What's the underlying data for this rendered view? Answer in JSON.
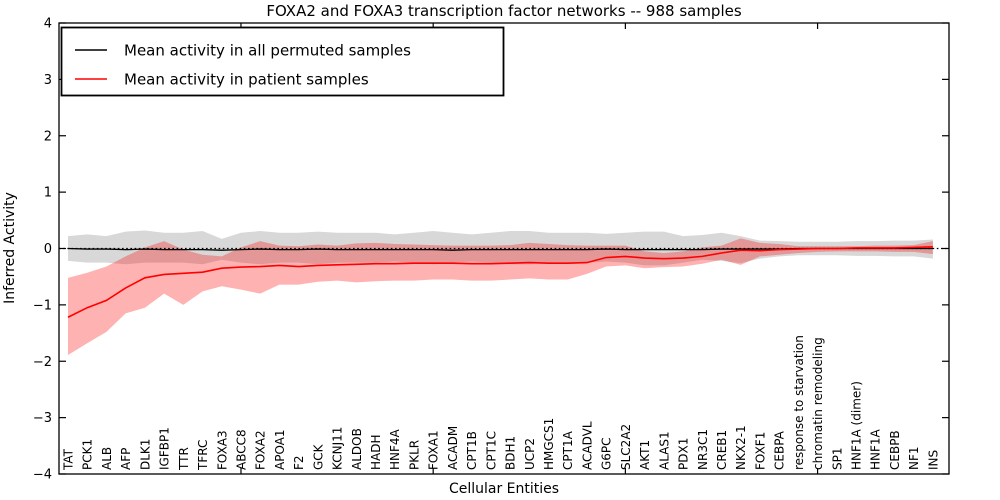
{
  "title": "FOXA2 and FOXA3 transcription factor networks -- 988 samples",
  "axes": {
    "xlabel": "Cellular Entities",
    "ylabel": "Inferred Activity"
  },
  "legend": {
    "position": "upper left",
    "items": [
      {
        "label": "Mean activity in all permuted samples",
        "color": "#000000"
      },
      {
        "label": "Mean activity in patient samples",
        "color": "#ff0000"
      }
    ]
  },
  "colors": {
    "patient_line": "#ff0000",
    "permuted_line": "#000000",
    "patient_band_fill": "rgba(255,0,0,0.30)",
    "permuted_band_fill": "rgba(125,125,125,0.30)",
    "zero_line": "#000000",
    "frame": "#000000",
    "background": "#ffffff"
  },
  "chart_data": {
    "type": "line",
    "title": "FOXA2 and FOXA3 transcription factor networks -- 988 samples",
    "xlabel": "Cellular Entities",
    "ylabel": "Inferred Activity",
    "ylim": [
      -4,
      4
    ],
    "yticks": [
      -4,
      -3,
      -2,
      -1,
      0,
      1,
      2,
      3,
      4
    ],
    "grid": false,
    "legend_position": "upper left",
    "zero_line": {
      "y": 0,
      "style": "dashed",
      "color": "#000000"
    },
    "categories": [
      "TAT",
      "PCK1",
      "ALB",
      "AFP",
      "DLK1",
      "IGFBP1",
      "TTR",
      "TFRC",
      "FOXA3",
      "ABCC8",
      "FOXA2",
      "APOA1",
      "F2",
      "GCK",
      "KCNJ11",
      "ALDOB",
      "HADH",
      "HNF4A",
      "PKLR",
      "FOXA1",
      "ACADM",
      "CPT1B",
      "CPT1C",
      "BDH1",
      "UCP2",
      "HMGCS1",
      "CPT1A",
      "ACADVL",
      "G6PC",
      "SLC2A2",
      "AKT1",
      "ALAS1",
      "PDX1",
      "NR3C1",
      "CREB1",
      "NKX2-1",
      "FOXF1",
      "CEBPA",
      "response to starvation",
      "chromatin remodeling",
      "SP1",
      "HNF1A (dimer)",
      "HNF1A",
      "CEBPB",
      "NF1",
      "INS"
    ],
    "series": [
      {
        "name": "Mean activity in all permuted samples",
        "color": "#000000",
        "values": [
          0.0,
          -0.01,
          -0.01,
          -0.02,
          -0.01,
          -0.02,
          -0.02,
          -0.02,
          -0.03,
          -0.02,
          -0.01,
          -0.02,
          -0.02,
          -0.01,
          -0.02,
          -0.02,
          -0.02,
          -0.02,
          -0.02,
          -0.02,
          -0.03,
          -0.02,
          -0.02,
          -0.02,
          -0.02,
          -0.02,
          -0.02,
          -0.02,
          -0.01,
          -0.02,
          -0.02,
          -0.02,
          -0.02,
          -0.02,
          -0.01,
          -0.01,
          -0.01,
          -0.01,
          0.0,
          0.0,
          0.0,
          0.0,
          0.0,
          0.0,
          0.0,
          0.0
        ],
        "band_lo": [
          -0.22,
          -0.25,
          -0.25,
          -0.28,
          -0.25,
          -0.25,
          -0.25,
          -0.28,
          -0.2,
          -0.25,
          -0.28,
          -0.25,
          -0.25,
          -0.28,
          -0.25,
          -0.25,
          -0.25,
          -0.23,
          -0.25,
          -0.28,
          -0.25,
          -0.23,
          -0.25,
          -0.28,
          -0.28,
          -0.25,
          -0.25,
          -0.25,
          -0.23,
          -0.25,
          -0.3,
          -0.3,
          -0.25,
          -0.2,
          -0.22,
          -0.26,
          -0.18,
          -0.14,
          -0.12,
          -0.12,
          -0.12,
          -0.13,
          -0.13,
          -0.14,
          -0.14,
          -0.18
        ],
        "band_hi": [
          0.22,
          0.25,
          0.22,
          0.3,
          0.32,
          0.28,
          0.28,
          0.31,
          0.17,
          0.28,
          0.31,
          0.28,
          0.28,
          0.3,
          0.28,
          0.28,
          0.28,
          0.25,
          0.28,
          0.31,
          0.28,
          0.25,
          0.28,
          0.31,
          0.31,
          0.28,
          0.28,
          0.28,
          0.26,
          0.28,
          0.3,
          0.3,
          0.22,
          0.24,
          0.28,
          0.22,
          0.14,
          0.13,
          0.12,
          0.12,
          0.12,
          0.13,
          0.13,
          0.14,
          0.14,
          0.16
        ]
      },
      {
        "name": "Mean activity in patient samples",
        "color": "#ff0000",
        "values": [
          -1.22,
          -1.05,
          -0.92,
          -0.7,
          -0.52,
          -0.46,
          -0.44,
          -0.42,
          -0.35,
          -0.33,
          -0.32,
          -0.3,
          -0.32,
          -0.3,
          -0.29,
          -0.28,
          -0.27,
          -0.27,
          -0.26,
          -0.26,
          -0.26,
          -0.27,
          -0.27,
          -0.26,
          -0.25,
          -0.26,
          -0.26,
          -0.25,
          -0.16,
          -0.14,
          -0.17,
          -0.18,
          -0.17,
          -0.14,
          -0.08,
          -0.03,
          -0.04,
          -0.02,
          -0.01,
          0.0,
          0.0,
          0.01,
          0.01,
          0.01,
          0.02,
          0.03
        ],
        "band_lo": [
          -1.89,
          -1.68,
          -1.48,
          -1.15,
          -1.05,
          -0.8,
          -1.0,
          -0.76,
          -0.67,
          -0.73,
          -0.8,
          -0.64,
          -0.64,
          -0.59,
          -0.57,
          -0.6,
          -0.58,
          -0.57,
          -0.57,
          -0.55,
          -0.55,
          -0.57,
          -0.57,
          -0.55,
          -0.53,
          -0.55,
          -0.55,
          -0.45,
          -0.32,
          -0.3,
          -0.35,
          -0.33,
          -0.32,
          -0.27,
          -0.2,
          -0.29,
          -0.14,
          -0.11,
          -0.08,
          -0.06,
          -0.05,
          -0.05,
          -0.05,
          -0.06,
          -0.06,
          -0.1
        ],
        "band_hi": [
          -0.52,
          -0.43,
          -0.32,
          -0.14,
          0.02,
          0.13,
          -0.02,
          -0.11,
          -0.14,
          0.02,
          0.13,
          0.05,
          0.04,
          0.07,
          0.05,
          0.09,
          0.1,
          0.08,
          0.07,
          0.06,
          0.05,
          0.05,
          0.05,
          0.06,
          0.1,
          0.08,
          0.06,
          0.05,
          0.05,
          0.05,
          -0.05,
          -0.08,
          -0.05,
          0.02,
          0.05,
          0.18,
          0.1,
          0.08,
          0.04,
          0.04,
          0.04,
          0.04,
          0.05,
          0.05,
          0.06,
          0.13
        ]
      }
    ]
  }
}
